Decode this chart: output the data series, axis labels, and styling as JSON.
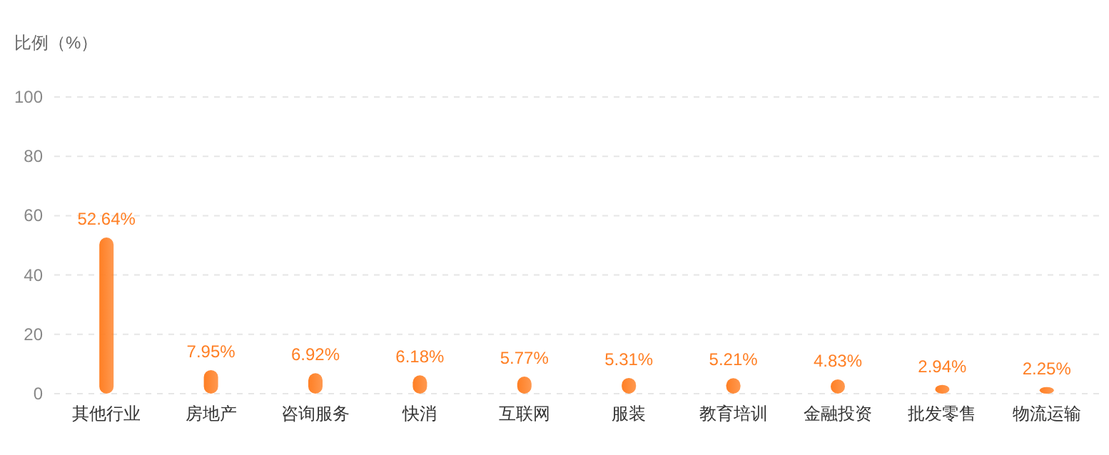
{
  "chart_data": {
    "type": "bar",
    "ylabel": "比例（%）",
    "categories": [
      "其他行业",
      "房地产",
      "咨询服务",
      "快消",
      "互联网",
      "服装",
      "教育培训",
      "金融投资",
      "批发零售",
      "物流运输"
    ],
    "values": [
      52.64,
      7.95,
      6.92,
      6.18,
      5.77,
      5.31,
      5.21,
      4.83,
      2.94,
      2.25
    ],
    "value_labels": [
      "52.64%",
      "7.95%",
      "6.92%",
      "6.18%",
      "5.77%",
      "5.31%",
      "5.21%",
      "4.83%",
      "2.94%",
      "2.25%"
    ],
    "color": "#ff7f24",
    "ylim": [
      0,
      100
    ],
    "yticks": [
      0,
      20,
      40,
      60,
      80,
      100
    ],
    "grid": "y"
  }
}
